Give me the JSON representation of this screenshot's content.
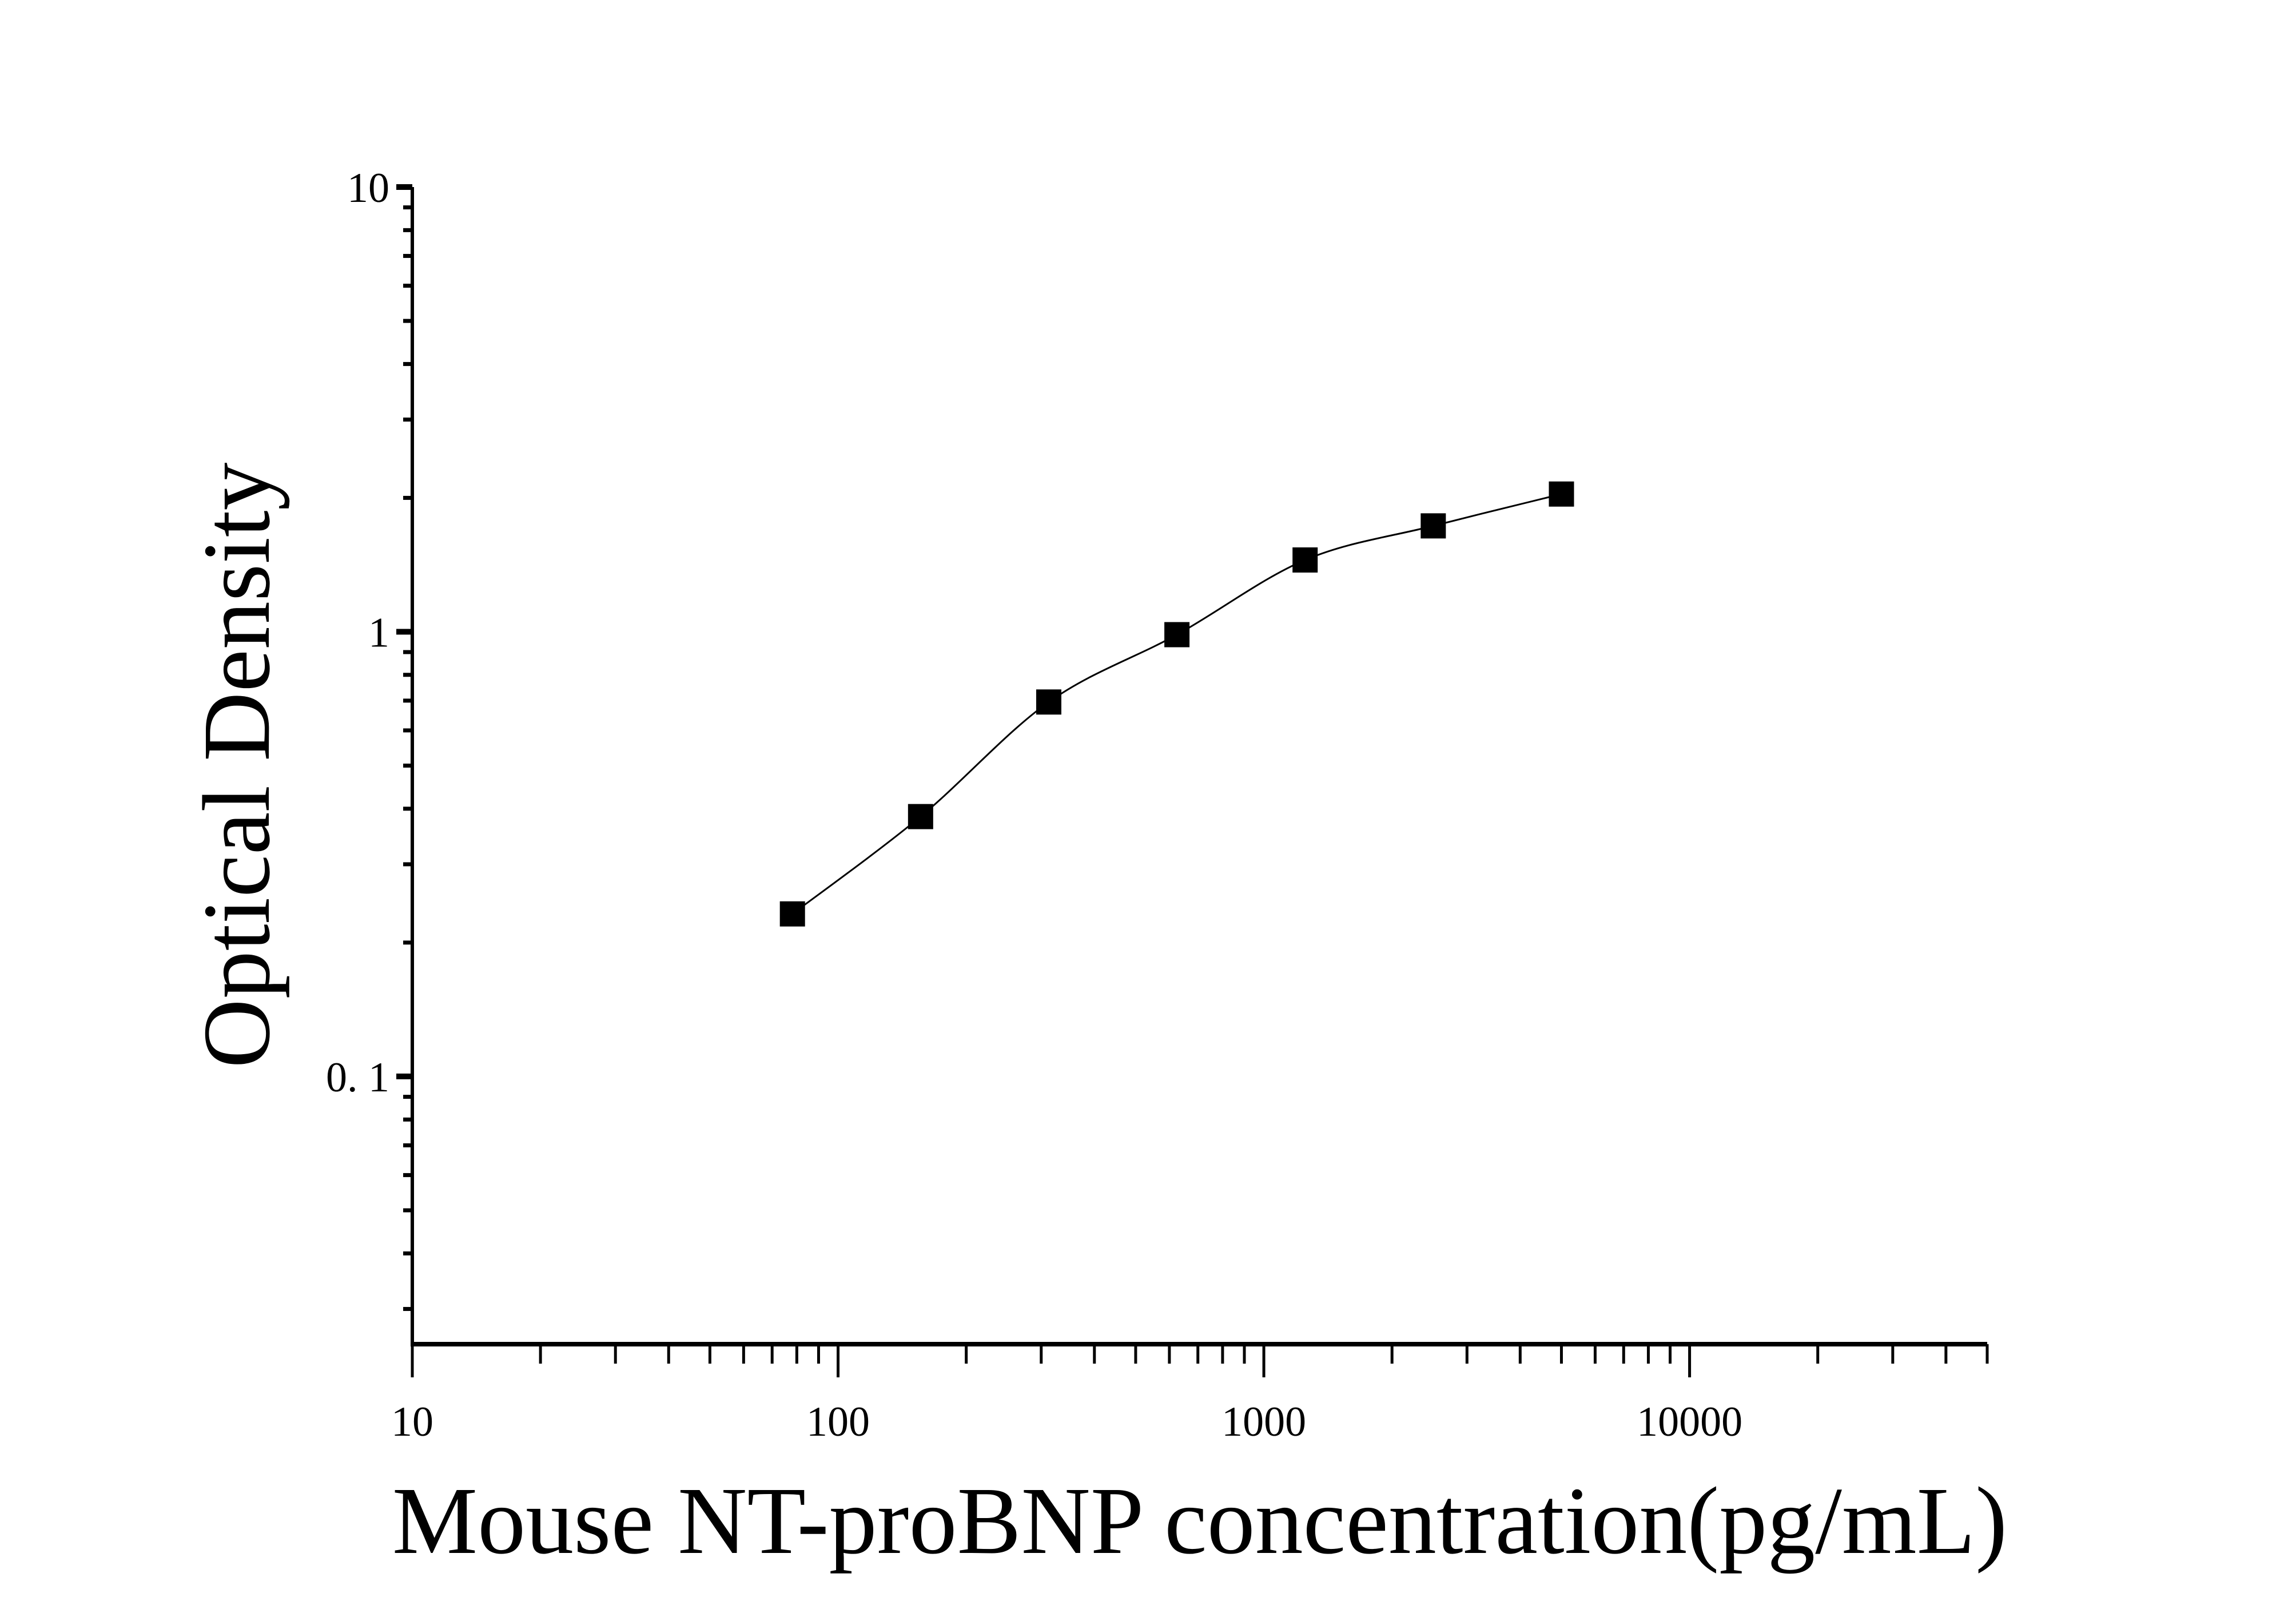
{
  "chart_data": {
    "type": "scatter",
    "xlabel": "Mouse NT-proBNP concentration(pg/mL)",
    "ylabel": "Optical Density",
    "x_scale": "log",
    "y_scale": "log",
    "xlim": [
      10,
      50000
    ],
    "ylim": [
      0.025,
      10
    ],
    "x_ticks": [
      10,
      100,
      1000,
      10000
    ],
    "x_tick_labels": [
      "10",
      "100",
      "1000",
      "10000"
    ],
    "y_ticks": [
      0.1,
      1,
      10
    ],
    "y_tick_labels": [
      "0. 1",
      "1",
      "10"
    ],
    "grid": false,
    "marker": "square",
    "marker_color": "#000000",
    "line_color": "#000000",
    "fit_curve": true,
    "series": [
      {
        "x": [
          78.125,
          156.25,
          312.5,
          625,
          1250,
          2500,
          5000
        ],
        "y": [
          0.232,
          0.384,
          0.695,
          0.985,
          1.45,
          1.73,
          2.04
        ]
      }
    ]
  }
}
